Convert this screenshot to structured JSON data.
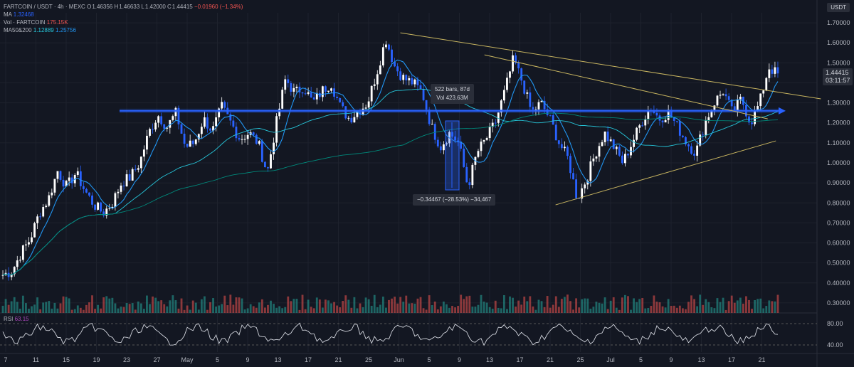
{
  "header": {
    "symbol": "FARTCOIN / USDT · 4h · MEXC",
    "o_label": "O",
    "o": "1.46356",
    "h_label": "H",
    "h": "1.46633",
    "l_label": "L",
    "l": "1.42000",
    "c_label": "C",
    "c": "1.44415",
    "change": "−0.01960 (−1.34%)",
    "ma_label": "MA",
    "ma_value": "1.32468",
    "vol_label": "Vol · FARTCOIN",
    "vol_value": "175.15K",
    "ma50_200_label": "MA50&200",
    "ma50_value": "1.12889",
    "ma200_value": "1.25756"
  },
  "currency": "USDT",
  "price_tag": {
    "price": "1.44415",
    "countdown": "03:11:57"
  },
  "measure_top": {
    "line1": "522 bars, 87d",
    "line2": "Vol 423.63M"
  },
  "measure_bottom": {
    "text": "−0.34467 (−28.53%) −34,467"
  },
  "rsi": {
    "label": "RSI",
    "value": "63.15",
    "levels": [
      "80.00",
      "40.00"
    ]
  },
  "colors": {
    "up": "#26a69a",
    "down": "#ef5350",
    "candle_up": "#ffffff",
    "candle_down": "#2962ff",
    "trend": "#c8b560",
    "hline": "#2962ff",
    "ma_fast": "#2196f3",
    "ma_50": "#26c6da",
    "ma_200": "#00897b"
  },
  "chart_data": {
    "type": "line",
    "price_axis": [
      "1.70000",
      "1.60000",
      "1.50000",
      "1.40000",
      "1.30000",
      "1.20000",
      "1.10000",
      "1.00000",
      "0.90000",
      "0.80000",
      "0.70000",
      "0.60000",
      "0.50000",
      "0.40000",
      "0.30000"
    ],
    "time_axis": [
      "7",
      "11",
      "15",
      "19",
      "23",
      "27",
      "May",
      "5",
      "9",
      "13",
      "17",
      "21",
      "25",
      "Jun",
      "5",
      "9",
      "13",
      "17",
      "21",
      "25",
      "Jul",
      "5",
      "9",
      "13",
      "17",
      "21"
    ],
    "ylim": [
      0.25,
      1.75
    ],
    "price_path": [
      0.44,
      0.46,
      0.55,
      0.62,
      0.75,
      0.82,
      0.96,
      0.88,
      0.95,
      0.86,
      0.79,
      0.75,
      0.8,
      0.9,
      0.93,
      1.0,
      1.15,
      1.24,
      1.18,
      1.25,
      1.08,
      1.1,
      1.22,
      1.16,
      1.28,
      1.2,
      1.12,
      1.15,
      1.1,
      0.95,
      1.2,
      1.42,
      1.35,
      1.38,
      1.3,
      1.36,
      1.4,
      1.28,
      1.22,
      1.26,
      1.3,
      1.45,
      1.62,
      1.48,
      1.42,
      1.4,
      1.35,
      1.18,
      1.08,
      1.15,
      1.1,
      0.88,
      1.05,
      1.12,
      1.2,
      1.35,
      1.52,
      1.4,
      1.25,
      1.3,
      1.22,
      1.1,
      1.02,
      0.82,
      0.92,
      1.05,
      1.15,
      1.08,
      1.0,
      1.1,
      1.2,
      1.28,
      1.22,
      1.25,
      1.18,
      1.1,
      1.05,
      1.2,
      1.3,
      1.36,
      1.25,
      1.32,
      1.2,
      1.3,
      1.48,
      1.44
    ],
    "horizontal_level": 1.26,
    "trendlines": [
      {
        "from": [
          0.49,
          1.65
        ],
        "to": [
          0.935,
          1.32
        ]
      },
      {
        "from": [
          0.593,
          1.54
        ],
        "to": [
          0.87,
          1.22
        ]
      },
      {
        "from": [
          0.68,
          0.79
        ],
        "to": [
          0.88,
          1.11
        ]
      }
    ]
  }
}
